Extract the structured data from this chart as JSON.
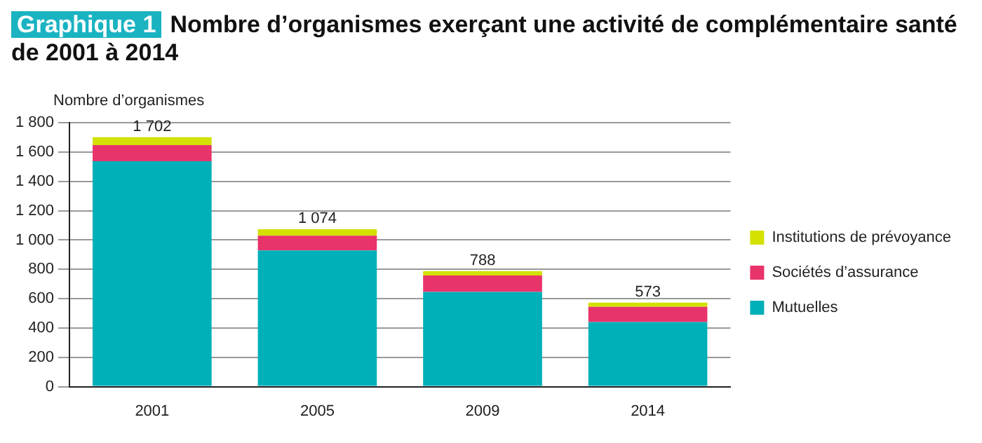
{
  "chart_data": {
    "type": "bar",
    "title": "Nombre d’organismes exerçant une activité de complémentaire santé de 2001 à 2014",
    "annotations": [
      "Graphique 1"
    ],
    "ylabel": "Nombre d’organismes",
    "categories": [
      "2001",
      "2005",
      "2009",
      "2014"
    ],
    "series": [
      {
        "name": "Mutuelles",
        "color": "#00b0b9",
        "values": [
          1538,
          930,
          646,
          440
        ]
      },
      {
        "name": "Sociétés d’assurance",
        "color": "#e8336b",
        "values": [
          110,
          100,
          112,
          105
        ]
      },
      {
        "name": "Institutions de prévoyance",
        "color": "#d4e000",
        "values": [
          54,
          44,
          30,
          28
        ]
      }
    ],
    "stacked": true,
    "totals": [
      "1 702",
      "1 074",
      "788",
      "573"
    ],
    "ylim": [
      0,
      1800
    ],
    "yticks": [
      0,
      200,
      400,
      600,
      800,
      {
        "value": 1000,
        "label": "1 000"
      },
      {
        "value": 1200,
        "label": "1 200"
      },
      {
        "value": 1400,
        "label": "1 400"
      },
      {
        "value": 1600,
        "label": "1 600"
      },
      {
        "value": 1800,
        "label": "1 800"
      }
    ],
    "grid": "y",
    "legend": "right"
  }
}
